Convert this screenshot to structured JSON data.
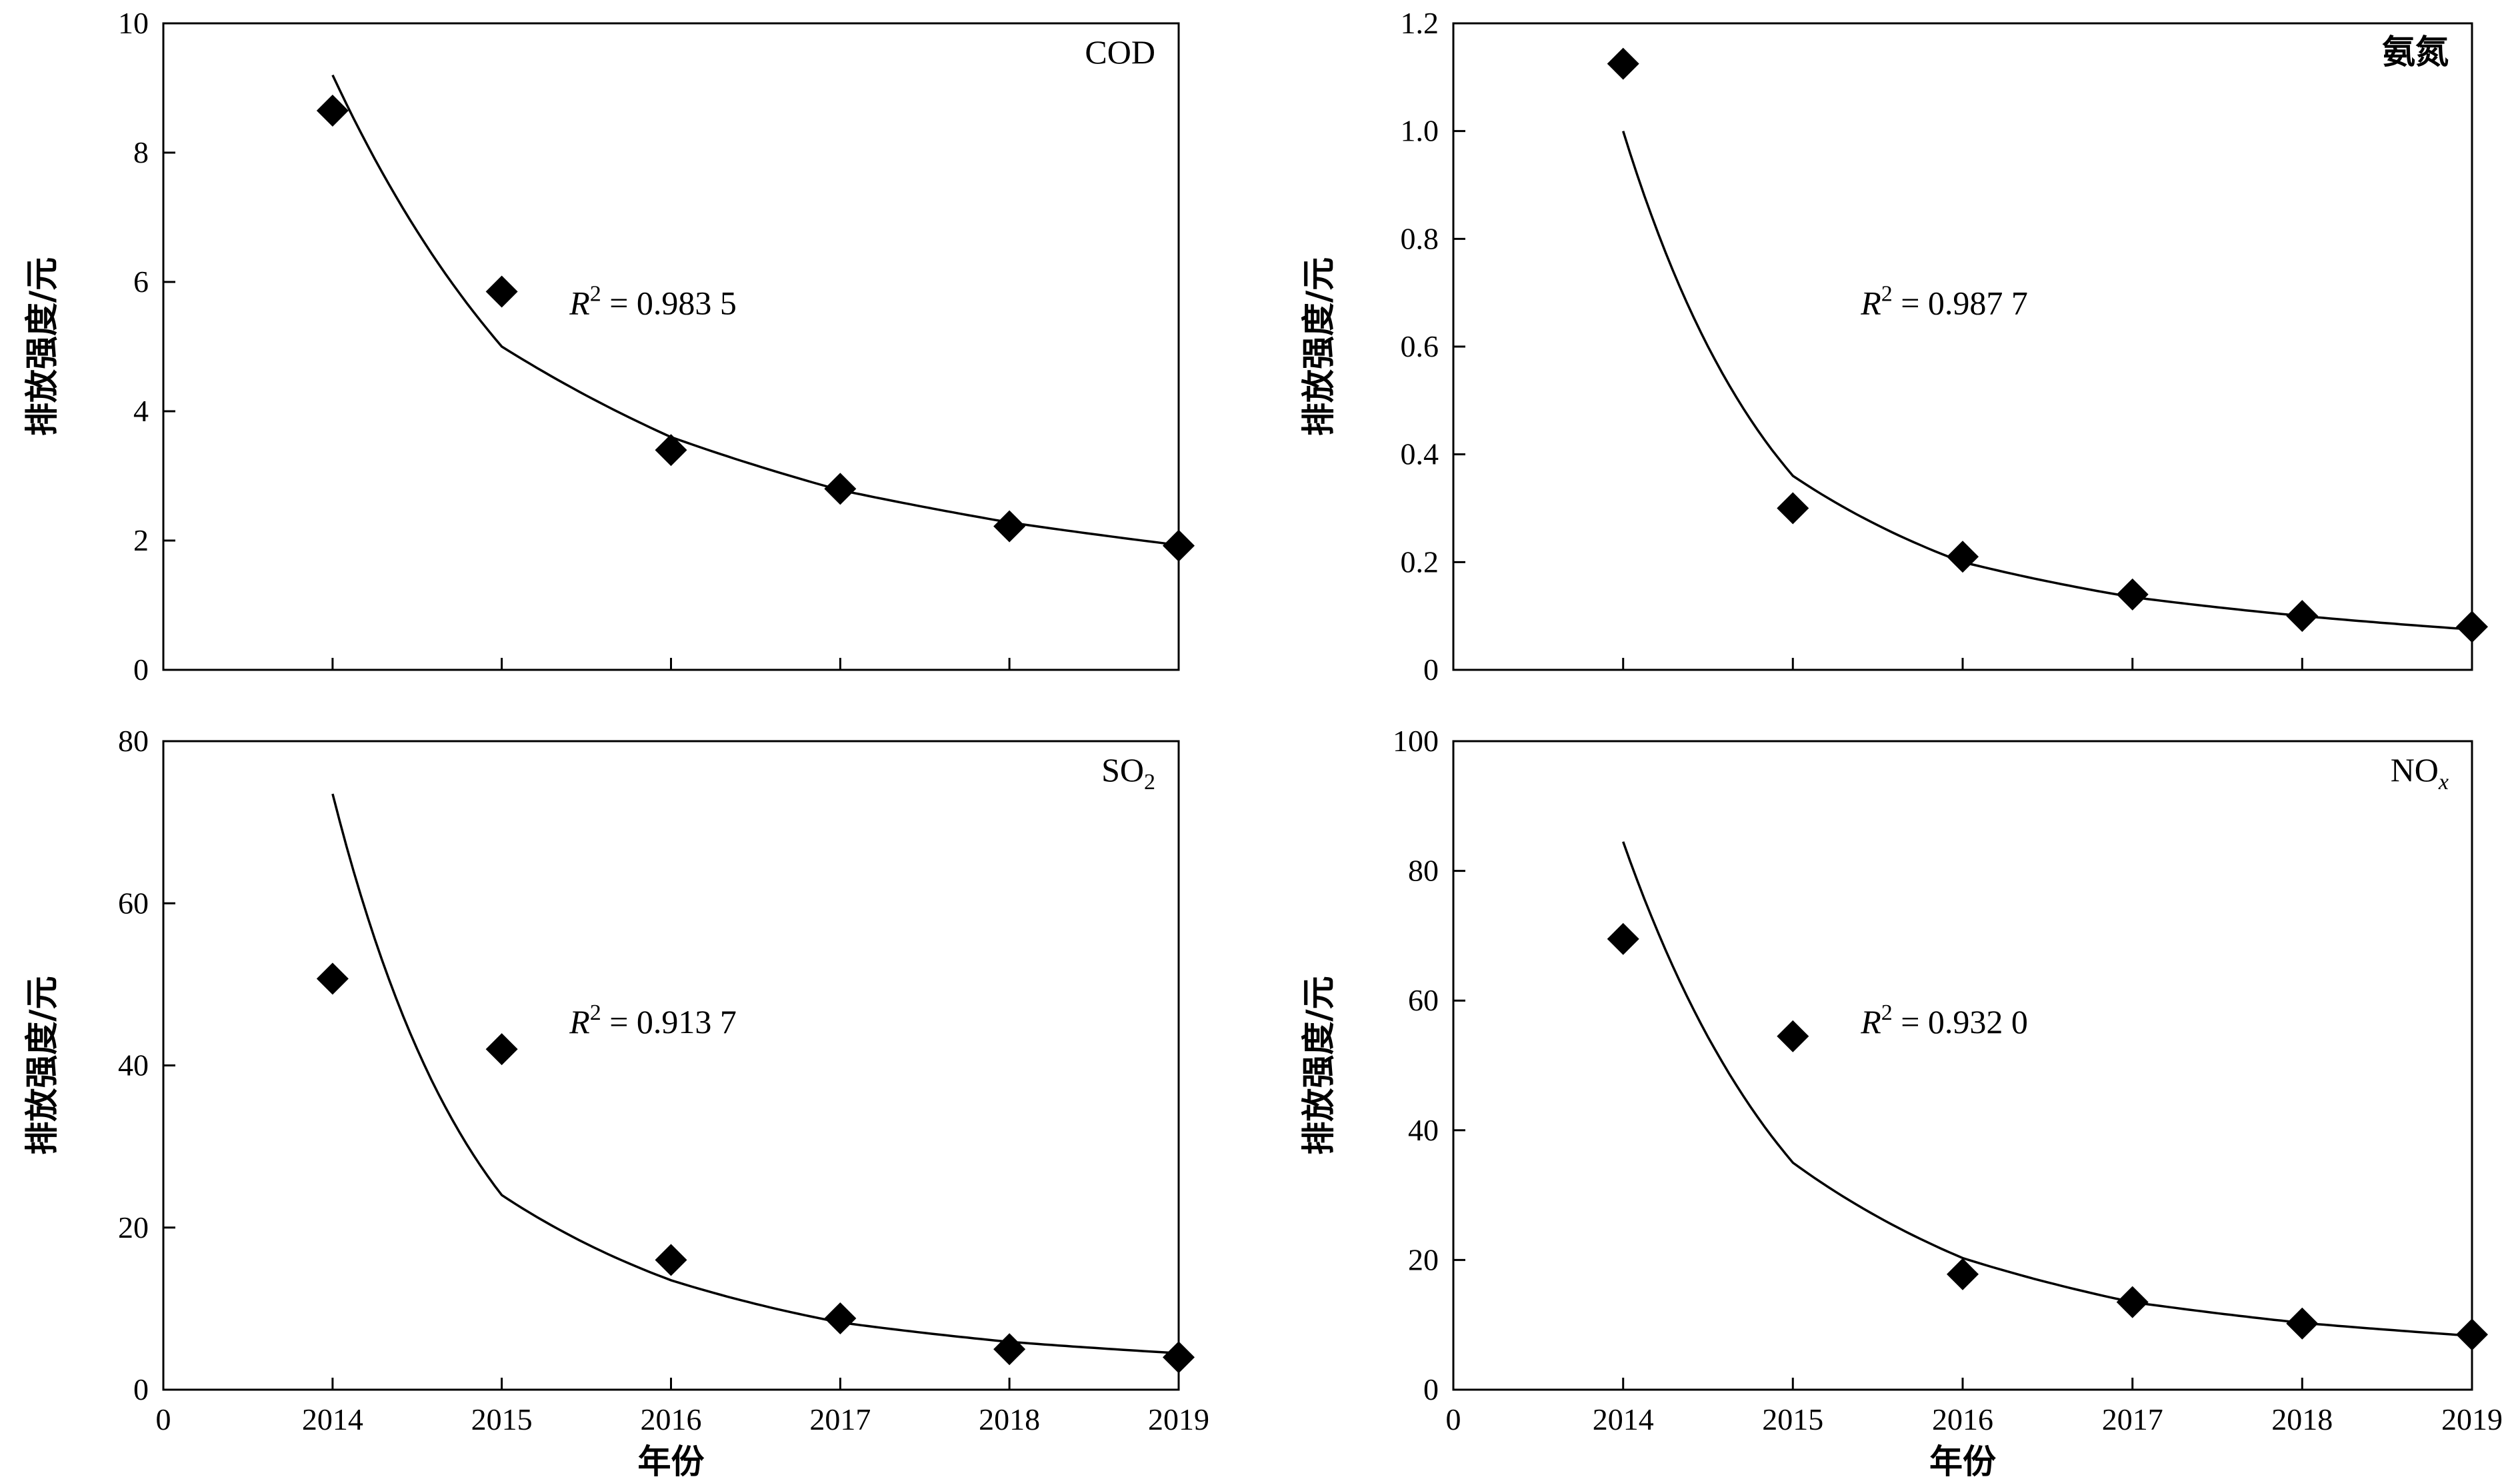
{
  "x_axis_label": "年份",
  "y_axis_label": "排放强度/元",
  "chart_data": [
    {
      "type": "scatter",
      "title": "COD",
      "ylabel": "排放强度/元",
      "xlabel": "",
      "xlim": [
        0,
        2019
      ],
      "ylim": [
        0,
        10
      ],
      "x_ticks": [
        "0",
        "2014",
        "2015",
        "2016",
        "2017",
        "2018",
        "2019"
      ],
      "y_ticks": [
        "0",
        "2",
        "4",
        "6",
        "8",
        "10"
      ],
      "points": {
        "x": [
          2014,
          2015,
          2016,
          2017,
          2018,
          2019
        ],
        "y": [
          8.65,
          5.85,
          3.4,
          2.8,
          2.22,
          1.92
        ]
      },
      "fit_curve": {
        "x": [
          2014,
          2015,
          2016,
          2017,
          2018,
          2019
        ],
        "y": [
          9.2,
          5.0,
          3.6,
          2.78,
          2.28,
          1.93
        ]
      },
      "annotation": {
        "r2_label": "R",
        "r2_sup": "2",
        "r2_value": " = 0.983 5"
      },
      "grid": false
    },
    {
      "type": "scatter",
      "title": "氨氮",
      "ylabel": "排放强度/元",
      "xlabel": "",
      "xlim": [
        0,
        2019
      ],
      "ylim": [
        0,
        1.2
      ],
      "x_ticks": [
        "0",
        "2014",
        "2015",
        "2016",
        "2017",
        "2018",
        "2019"
      ],
      "y_ticks": [
        "0",
        "0.2",
        "0.4",
        "0.6",
        "0.8",
        "1.0",
        "1.2"
      ],
      "points": {
        "x": [
          2014,
          2015,
          2016,
          2017,
          2018,
          2019
        ],
        "y": [
          1.125,
          0.3,
          0.21,
          0.14,
          0.1,
          0.08
        ]
      },
      "fit_curve": {
        "x": [
          2014,
          2015,
          2016,
          2017,
          2018,
          2019
        ],
        "y": [
          1.0,
          0.36,
          0.2,
          0.135,
          0.1,
          0.075
        ]
      },
      "annotation": {
        "r2_label": "R",
        "r2_sup": "2",
        "r2_value": " = 0.987 7"
      },
      "grid": false
    },
    {
      "type": "scatter",
      "title": "SO",
      "title_sub": "2",
      "ylabel": "排放强度/元",
      "xlabel": "年份",
      "xlim": [
        0,
        2019
      ],
      "ylim": [
        0,
        80
      ],
      "x_ticks": [
        "0",
        "2014",
        "2015",
        "2016",
        "2017",
        "2018",
        "2019"
      ],
      "y_ticks": [
        "0",
        "20",
        "40",
        "60",
        "80"
      ],
      "points": {
        "x": [
          2014,
          2015,
          2016,
          2017,
          2018,
          2019
        ],
        "y": [
          50.7,
          42.0,
          16.0,
          8.8,
          5.0,
          4.0
        ]
      },
      "fit_curve": {
        "x": [
          2014,
          2015,
          2016,
          2017,
          2018,
          2019
        ],
        "y": [
          73.5,
          24.0,
          13.5,
          8.3,
          5.9,
          4.5
        ]
      },
      "annotation": {
        "r2_label": "R",
        "r2_sup": "2",
        "r2_value": " = 0.913 7"
      },
      "grid": false
    },
    {
      "type": "scatter",
      "title": "NO",
      "title_sub": "x",
      "ylabel": "排放强度/元",
      "xlabel": "年份",
      "xlim": [
        0,
        2019
      ],
      "ylim": [
        0,
        100
      ],
      "x_ticks": [
        "0",
        "2014",
        "2015",
        "2016",
        "2017",
        "2018",
        "2019"
      ],
      "y_ticks": [
        "0",
        "20",
        "40",
        "60",
        "80",
        "100"
      ],
      "points": {
        "x": [
          2014,
          2015,
          2016,
          2017,
          2018,
          2019
        ],
        "y": [
          69.5,
          54.5,
          17.8,
          13.5,
          10.2,
          8.5
        ]
      },
      "fit_curve": {
        "x": [
          2014,
          2015,
          2016,
          2017,
          2018,
          2019
        ],
        "y": [
          84.5,
          35.0,
          20.3,
          13.5,
          10.3,
          8.3
        ]
      },
      "annotation": {
        "r2_label": "R",
        "r2_sup": "2",
        "r2_value": " = 0.932 0"
      },
      "grid": false
    }
  ]
}
